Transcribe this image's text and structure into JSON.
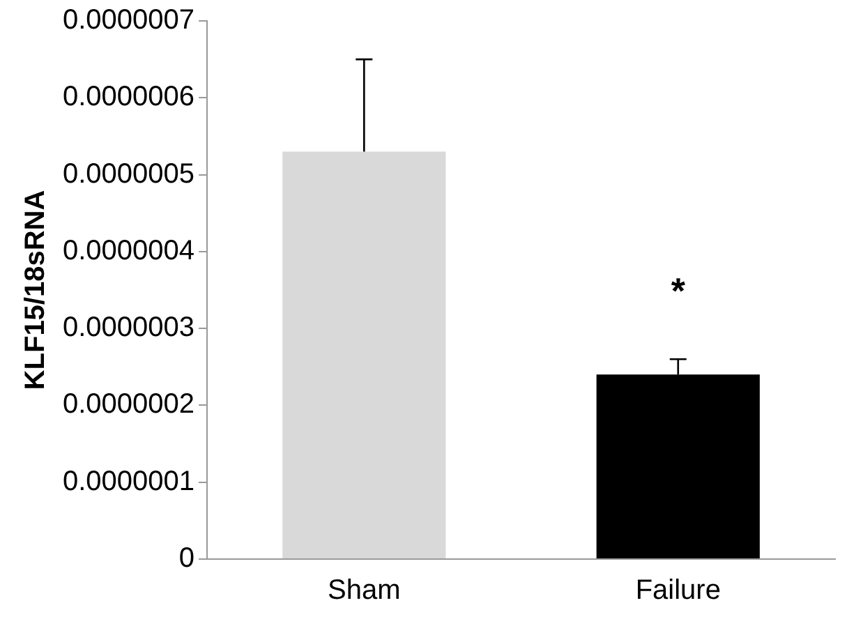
{
  "chart_data": {
    "type": "bar",
    "ylabel": "KLF15/18sRNA",
    "categories": [
      "Sham",
      "Failure"
    ],
    "values": [
      5.3e-07,
      2.4e-07
    ],
    "colors": [
      "#d9d9d9",
      "#000000"
    ],
    "errors": [
      [
        5.3e-07,
        6.5e-07
      ],
      [
        2.4e-07,
        2.6e-07
      ]
    ],
    "ylim": [
      0,
      7e-07
    ],
    "yticks": [
      0,
      {
        "value": 1e-07,
        "label": "0.0000001"
      },
      {
        "value": 2e-07,
        "label": "0.0000002"
      },
      {
        "value": 3e-07,
        "label": "0.0000003"
      },
      {
        "value": 4e-07,
        "label": "0.0000004"
      },
      {
        "value": 5e-07,
        "label": "0.0000005"
      },
      {
        "value": 6e-07,
        "label": "0.0000006"
      },
      {
        "value": 7e-07,
        "label": "0.0000007"
      }
    ],
    "annotations": [
      "*"
    ],
    "grid": false,
    "legend": false
  }
}
